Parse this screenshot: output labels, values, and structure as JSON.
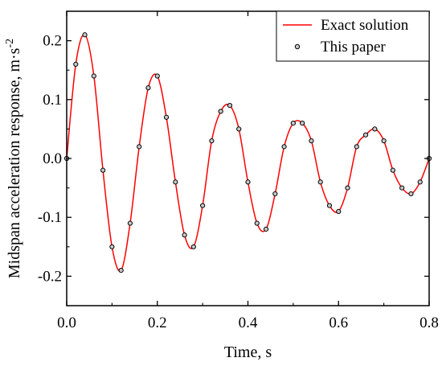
{
  "chart_data": {
    "type": "line",
    "title": "",
    "xlabel": "Time, s",
    "ylabel": "Midspan acceleration response, m·s",
    "ylabel_superscript": "-2",
    "xlim": [
      0,
      0.8
    ],
    "ylim": [
      -0.25,
      0.25
    ],
    "x_ticks": [
      "0.0",
      "0.2",
      "0.4",
      "0.6",
      "0.8"
    ],
    "y_ticks": [
      "0.2",
      "0.1",
      "0.0",
      "-0.1",
      "-0.2"
    ],
    "grid": false,
    "legend_position": "top-right",
    "series": [
      {
        "name": "Exact solution",
        "style": "line",
        "color": "#ff0000",
        "x": [
          0.0,
          0.02,
          0.04,
          0.06,
          0.08,
          0.1,
          0.12,
          0.14,
          0.16,
          0.18,
          0.2,
          0.22,
          0.24,
          0.26,
          0.28,
          0.3,
          0.32,
          0.34,
          0.36,
          0.38,
          0.4,
          0.42,
          0.44,
          0.46,
          0.48,
          0.5,
          0.52,
          0.54,
          0.56,
          0.58,
          0.6,
          0.62,
          0.64,
          0.66,
          0.68,
          0.7,
          0.72,
          0.74,
          0.76,
          0.78,
          0.8
        ],
        "y": [
          0.0,
          0.16,
          0.21,
          0.14,
          -0.02,
          -0.15,
          -0.19,
          -0.11,
          0.02,
          0.12,
          0.14,
          0.07,
          -0.04,
          -0.13,
          -0.15,
          -0.08,
          0.03,
          0.08,
          0.09,
          0.05,
          -0.04,
          -0.11,
          -0.12,
          -0.06,
          0.02,
          0.06,
          0.06,
          0.03,
          -0.04,
          -0.08,
          -0.09,
          -0.05,
          0.02,
          0.04,
          0.05,
          0.03,
          -0.02,
          -0.05,
          -0.06,
          -0.04,
          0.0
        ]
      },
      {
        "name": "This paper",
        "style": "markers",
        "color": "#000000",
        "marker_fill": "#c8c8c8",
        "x": [
          0.0,
          0.02,
          0.04,
          0.06,
          0.08,
          0.1,
          0.12,
          0.14,
          0.16,
          0.18,
          0.2,
          0.22,
          0.24,
          0.26,
          0.28,
          0.3,
          0.32,
          0.34,
          0.36,
          0.38,
          0.4,
          0.42,
          0.44,
          0.46,
          0.48,
          0.5,
          0.52,
          0.54,
          0.56,
          0.58,
          0.6,
          0.62,
          0.64,
          0.66,
          0.68,
          0.7,
          0.72,
          0.74,
          0.76,
          0.78,
          0.8
        ],
        "y": [
          0.0,
          0.16,
          0.21,
          0.14,
          -0.02,
          -0.15,
          -0.19,
          -0.11,
          0.02,
          0.12,
          0.14,
          0.07,
          -0.04,
          -0.13,
          -0.15,
          -0.08,
          0.03,
          0.08,
          0.09,
          0.05,
          -0.04,
          -0.11,
          -0.12,
          -0.06,
          0.02,
          0.06,
          0.06,
          0.03,
          -0.04,
          -0.08,
          -0.09,
          -0.05,
          0.02,
          0.04,
          0.05,
          0.03,
          -0.02,
          -0.05,
          -0.06,
          -0.04,
          0.0
        ]
      }
    ]
  }
}
